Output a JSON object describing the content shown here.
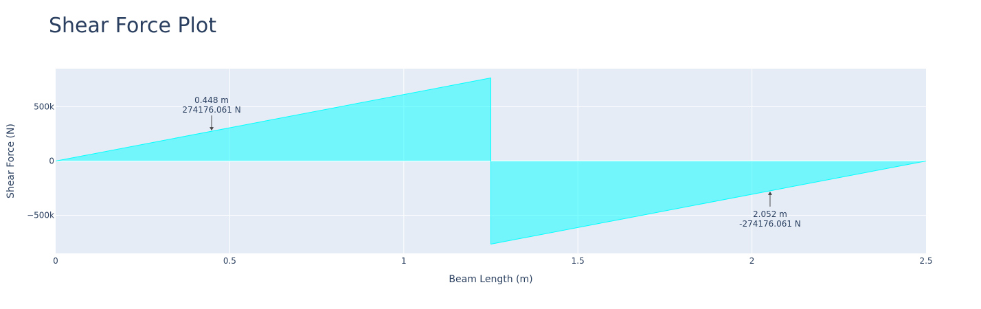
{
  "chart_data": {
    "type": "area",
    "title": "Shear Force Plot",
    "xlabel": "Beam Length (m)",
    "ylabel": "Shear Force (N)",
    "xlim": [
      0,
      2.5
    ],
    "ylim": [
      -850000,
      850000
    ],
    "x_ticks": [
      0,
      0.5,
      1,
      1.5,
      2,
      2.5
    ],
    "x_tick_labels": [
      "0",
      "0.5",
      "1",
      "1.5",
      "2",
      "2.5"
    ],
    "y_ticks": [
      500000,
      0,
      -500000
    ],
    "y_tick_labels": [
      "500k",
      "0",
      "−500k"
    ],
    "grid": true,
    "series": [
      {
        "x": [
          0,
          1.25,
          1.25,
          2.5
        ],
        "y": [
          0,
          765000,
          -765000,
          0
        ],
        "fill": "tozeroy",
        "color": "#00ffff"
      }
    ],
    "annotations": [
      {
        "x": 0.448,
        "y": 274176.061,
        "line1": "0.448 m",
        "line2": "274176.061 N",
        "direction": "down"
      },
      {
        "x": 2.052,
        "y": -274176.061,
        "line1": "2.052 m",
        "line2": "-274176.061 N",
        "direction": "up"
      }
    ],
    "colors": {
      "plot_background": "#e5ecf6",
      "grid": "#ffffff",
      "fill": "#00ffff",
      "text": "#2a3f5f",
      "arrow": "#444444"
    }
  }
}
